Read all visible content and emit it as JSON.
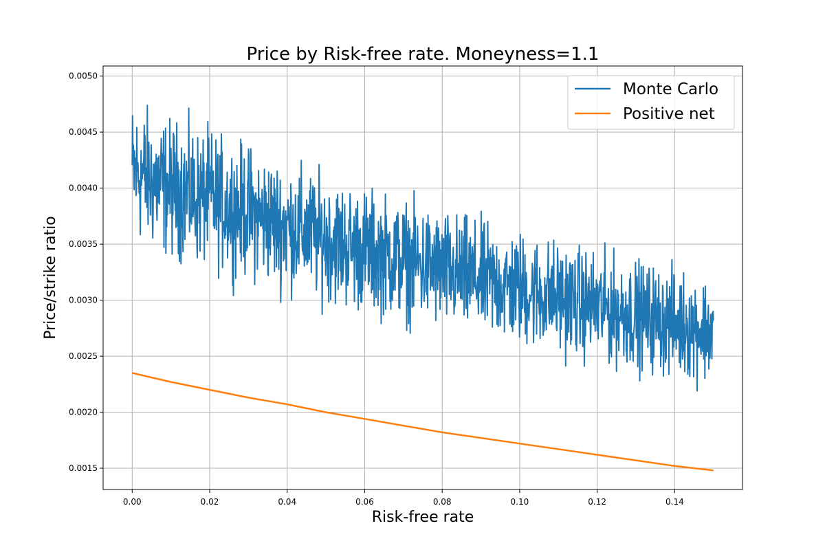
{
  "chart_data": {
    "type": "line",
    "title": "Price by Risk-free rate. Moneyness=1.1",
    "xlabel": "Risk-free rate",
    "ylabel": "Price/strike ratio",
    "xlim": [
      -0.0075,
      0.1575
    ],
    "ylim": [
      0.00131,
      0.00509
    ],
    "xticks": [
      0.0,
      0.02,
      0.04,
      0.06,
      0.08,
      0.1,
      0.12,
      0.14
    ],
    "xtick_labels": [
      "0.00",
      "0.02",
      "0.04",
      "0.06",
      "0.08",
      "0.10",
      "0.12",
      "0.14"
    ],
    "yticks": [
      0.0015,
      0.002,
      0.0025,
      0.003,
      0.0035,
      0.004,
      0.0045,
      0.005
    ],
    "ytick_labels": [
      "0.0015",
      "0.0020",
      "0.0025",
      "0.0030",
      "0.0035",
      "0.0040",
      "0.0045",
      "0.0050"
    ],
    "grid": true,
    "legend_position": "upper right",
    "series": [
      {
        "name": "Monte Carlo",
        "color": "#1f77b4",
        "x": [
          0.0,
          0.0025,
          0.005,
          0.0075,
          0.01,
          0.0125,
          0.015,
          0.0175,
          0.02,
          0.0225,
          0.025,
          0.0275,
          0.03,
          0.0325,
          0.035,
          0.0375,
          0.04,
          0.0425,
          0.045,
          0.0475,
          0.05,
          0.0525,
          0.055,
          0.0575,
          0.06,
          0.0625,
          0.065,
          0.0675,
          0.07,
          0.0725,
          0.075,
          0.0775,
          0.08,
          0.0825,
          0.085,
          0.0875,
          0.09,
          0.0925,
          0.095,
          0.0975,
          0.1,
          0.1025,
          0.105,
          0.1075,
          0.11,
          0.1125,
          0.115,
          0.1175,
          0.12,
          0.1225,
          0.125,
          0.1275,
          0.13,
          0.1325,
          0.135,
          0.1375,
          0.14,
          0.1425,
          0.145,
          0.1475,
          0.15
        ],
        "y": [
          0.00415,
          0.00412,
          0.00407,
          0.00402,
          0.004,
          0.00398,
          0.00395,
          0.00391,
          0.00392,
          0.00386,
          0.00384,
          0.00381,
          0.00379,
          0.00375,
          0.00372,
          0.00368,
          0.00366,
          0.00363,
          0.00361,
          0.00357,
          0.00355,
          0.00352,
          0.00349,
          0.00347,
          0.00345,
          0.00342,
          0.0034,
          0.00338,
          0.00335,
          0.00333,
          0.00331,
          0.00329,
          0.00326,
          0.00324,
          0.00322,
          0.0032,
          0.00318,
          0.00316,
          0.00314,
          0.00311,
          0.0031,
          0.00308,
          0.00305,
          0.00304,
          0.00302,
          0.003,
          0.00298,
          0.00296,
          0.00294,
          0.00292,
          0.0029,
          0.00289,
          0.00287,
          0.00285,
          0.00283,
          0.00281,
          0.0028,
          0.00278,
          0.00276,
          0.00274,
          0.00272
        ]
      },
      {
        "name": "Positive net",
        "color": "#ff7f0e",
        "x": [
          0.0,
          0.01,
          0.02,
          0.03,
          0.04,
          0.05,
          0.06,
          0.07,
          0.08,
          0.09,
          0.1,
          0.11,
          0.12,
          0.13,
          0.14,
          0.15
        ],
        "y": [
          0.00235,
          0.00227,
          0.0022,
          0.00213,
          0.00207,
          0.002,
          0.00194,
          0.00188,
          0.00182,
          0.00177,
          0.00172,
          0.00167,
          0.00162,
          0.00157,
          0.00152,
          0.00148
        ]
      }
    ]
  }
}
